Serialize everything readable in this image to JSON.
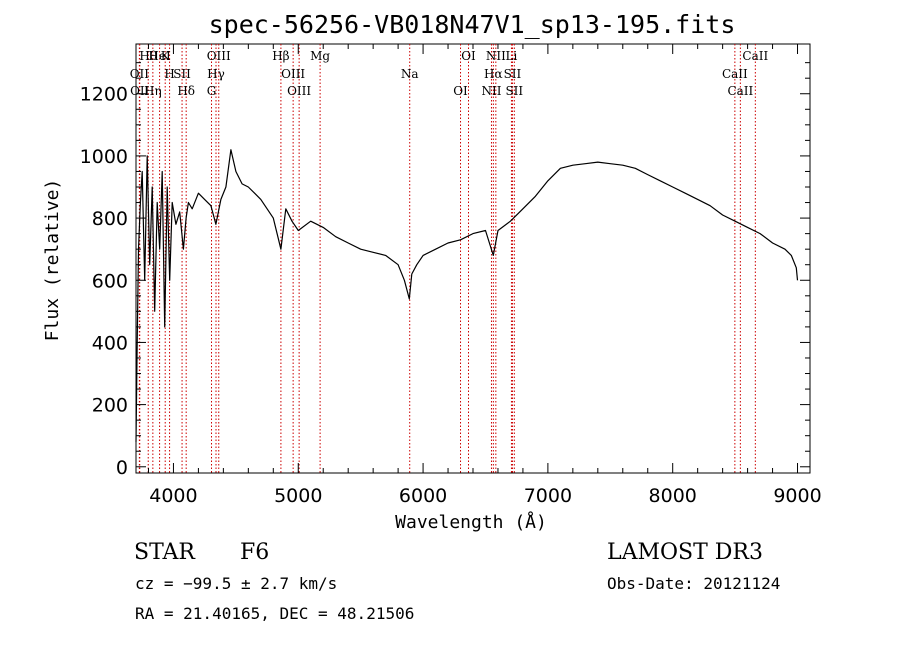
{
  "chart_data": {
    "type": "line",
    "title": "spec-56256-VB018N47V1_sp13-195.fits",
    "xlabel": "Wavelength (Å)",
    "ylabel": "Flux (relative)",
    "xlim": [
      3700,
      9100
    ],
    "ylim": [
      -20,
      1360
    ],
    "xticks": [
      4000,
      5000,
      6000,
      7000,
      8000,
      9000
    ],
    "yticks": [
      0,
      200,
      400,
      600,
      800,
      1000,
      1200
    ],
    "grid": false,
    "series": [
      {
        "name": "flux",
        "x": [
          3700,
          3710,
          3720,
          3735,
          3750,
          3770,
          3790,
          3810,
          3830,
          3850,
          3870,
          3890,
          3910,
          3930,
          3950,
          3970,
          3990,
          4020,
          4050,
          4080,
          4101,
          4120,
          4150,
          4200,
          4250,
          4300,
          4340,
          4380,
          4420,
          4460,
          4500,
          4550,
          4600,
          4650,
          4700,
          4750,
          4800,
          4861,
          4900,
          4950,
          5000,
          5100,
          5200,
          5300,
          5400,
          5500,
          5600,
          5700,
          5800,
          5850,
          5890,
          5910,
          5950,
          6000,
          6100,
          6200,
          6300,
          6400,
          6500,
          6563,
          6600,
          6700,
          6800,
          6900,
          7000,
          7100,
          7200,
          7300,
          7400,
          7500,
          7600,
          7700,
          7800,
          7900,
          8000,
          8100,
          8200,
          8300,
          8400,
          8500,
          8600,
          8700,
          8800,
          8900,
          8950,
          8990,
          9000
        ],
        "values": [
          80,
          400,
          700,
          850,
          950,
          600,
          1000,
          650,
          900,
          500,
          850,
          700,
          950,
          450,
          900,
          600,
          850,
          780,
          820,
          700,
          800,
          850,
          830,
          880,
          860,
          840,
          780,
          860,
          900,
          1020,
          950,
          910,
          900,
          880,
          860,
          830,
          800,
          700,
          830,
          790,
          760,
          790,
          770,
          740,
          720,
          700,
          690,
          680,
          650,
          600,
          540,
          620,
          650,
          680,
          700,
          720,
          730,
          750,
          760,
          680,
          760,
          790,
          830,
          870,
          920,
          960,
          970,
          975,
          980,
          975,
          970,
          960,
          940,
          920,
          900,
          880,
          860,
          840,
          810,
          790,
          770,
          750,
          720,
          700,
          680,
          640,
          600
        ],
        "color": "#000000"
      }
    ],
    "lines": [
      {
        "name": "Hθ",
        "wavelength": 3798
      },
      {
        "name": "OII",
        "wavelength": 3727
      },
      {
        "name": "OII",
        "wavelength": 3730
      },
      {
        "name": "K",
        "wavelength": 3934
      },
      {
        "name": "H",
        "wavelength": 3969
      },
      {
        "name": "Hη",
        "wavelength": 3835
      },
      {
        "name": "HeI",
        "wavelength": 3889
      },
      {
        "name": "SII",
        "wavelength": 4069
      },
      {
        "name": "Hδ",
        "wavelength": 4102
      },
      {
        "name": "OIII",
        "wavelength": 4363
      },
      {
        "name": "Hγ",
        "wavelength": 4341
      },
      {
        "name": "G",
        "wavelength": 4305
      },
      {
        "name": "Hβ",
        "wavelength": 4861
      },
      {
        "name": "OIII",
        "wavelength": 4959
      },
      {
        "name": "OIII",
        "wavelength": 5007
      },
      {
        "name": "Mg",
        "wavelength": 5175
      },
      {
        "name": "Na",
        "wavelength": 5893
      },
      {
        "name": "OI",
        "wavelength": 6300
      },
      {
        "name": "OI",
        "wavelength": 6364
      },
      {
        "name": "Hα",
        "wavelength": 6563
      },
      {
        "name": "NII",
        "wavelength": 6548
      },
      {
        "name": "NII",
        "wavelength": 6583
      },
      {
        "name": "SII",
        "wavelength": 6716
      },
      {
        "name": "SII",
        "wavelength": 6731
      },
      {
        "name": "Li",
        "wavelength": 6708
      },
      {
        "name": "CaII",
        "wavelength": 8498
      },
      {
        "name": "CaII",
        "wavelength": 8542
      },
      {
        "name": "CaII",
        "wavelength": 8662
      }
    ],
    "line_color": "#cc0000"
  },
  "info": {
    "class": "STAR",
    "subclass": "F6",
    "survey": "LAMOST DR3",
    "redshift": "cz = −99.5 ± 2.7 km/s",
    "obs_date": "Obs-Date: 20121124",
    "coords": "RA =  21.40165, DEC =  48.21506"
  }
}
